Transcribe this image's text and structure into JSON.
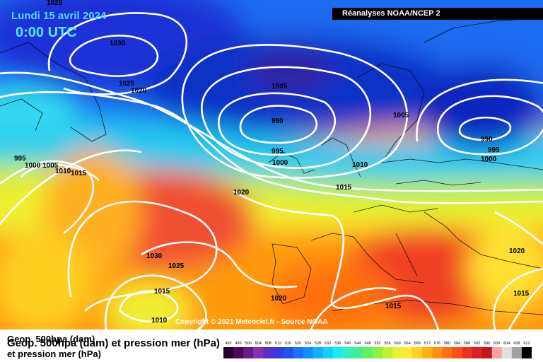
{
  "header": {
    "date": "Lundi 15 avril 2024",
    "time": "0:00 UTC",
    "source": "Réanalyses NOAA/NCEP 2"
  },
  "footer": {
    "legend_line1": "Geop. 500hpa (dam)",
    "legend_line2": "Geop. 500hpa (dam) et pression mer (hPa)",
    "legend_line3": "et pression mer (hPa)",
    "copyright": "Copyright © 2021 Meteociel.fr - Source NOAA"
  },
  "colorbar": {
    "ticks": [
      "492",
      "496",
      "500",
      "504",
      "508",
      "512",
      "516",
      "520",
      "524",
      "528",
      "532",
      "536",
      "540",
      "544",
      "548",
      "552",
      "556",
      "560",
      "564",
      "568",
      "572",
      "576",
      "580",
      "584",
      "588",
      "592",
      "596",
      "600",
      "604",
      "608",
      "612"
    ],
    "colors": [
      "#2a0030",
      "#4a0a5a",
      "#6a1a86",
      "#8a2fb0",
      "#5a2fc8",
      "#3a3ae0",
      "#2050f0",
      "#1a70ff",
      "#1090ff",
      "#10b0ff",
      "#10d0ff",
      "#20e8f0",
      "#30f0c0",
      "#40f090",
      "#60f060",
      "#90f040",
      "#c0f030",
      "#e8f030",
      "#ffe830",
      "#ffd020",
      "#ffb010",
      "#ff9010",
      "#ff7010",
      "#ff5018",
      "#f03020",
      "#d82020",
      "#c01818",
      "#ffa0a0",
      "#e0e0e0",
      "#a0a0a0",
      "#000000"
    ]
  },
  "pressure_labels": [
    {
      "text": "1025"
    },
    {
      "text": "1030"
    },
    {
      "text": "1025"
    },
    {
      "text": "1020"
    },
    {
      "text": "1005"
    },
    {
      "text": "990"
    },
    {
      "text": "995"
    },
    {
      "text": "1000"
    },
    {
      "text": "1005"
    },
    {
      "text": "990"
    },
    {
      "text": "995"
    },
    {
      "text": "1000"
    },
    {
      "text": "995"
    },
    {
      "text": "1000"
    },
    {
      "text": "1005"
    },
    {
      "text": "1010"
    },
    {
      "text": "1015"
    },
    {
      "text": "1010"
    },
    {
      "text": "1015"
    },
    {
      "text": "1020"
    },
    {
      "text": "1030"
    },
    {
      "text": "1025"
    },
    {
      "text": "1015"
    },
    {
      "text": "1010"
    },
    {
      "text": "1020"
    },
    {
      "text": "1015"
    },
    {
      "text": "1020"
    },
    {
      "text": "1015"
    }
  ]
}
